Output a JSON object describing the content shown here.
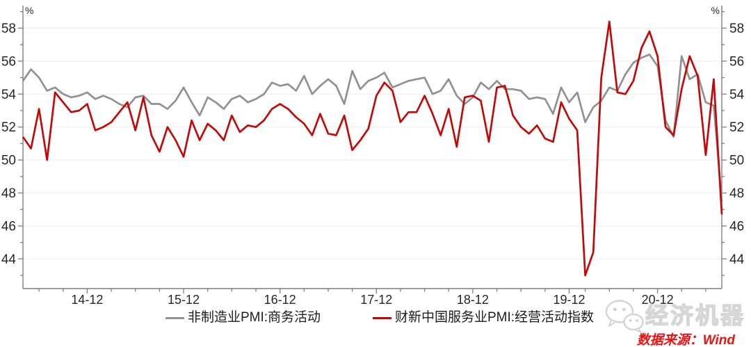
{
  "chart_data": {
    "type": "line",
    "y_axis_unit": "%",
    "ylim": [
      42.2,
      59.2
    ],
    "y_ticks": [
      44,
      46,
      48,
      50,
      52,
      54,
      56,
      58
    ],
    "grid": "horizontal-faint",
    "legend_position": "bottom-center",
    "x_tick_labels": [
      "14-12",
      "15-12",
      "16-12",
      "17-12",
      "18-12",
      "19-12",
      "20-12"
    ],
    "x": [
      "2014-04",
      "2014-05",
      "2014-06",
      "2014-07",
      "2014-08",
      "2014-09",
      "2014-10",
      "2014-11",
      "2014-12",
      "2015-01",
      "2015-02",
      "2015-03",
      "2015-04",
      "2015-05",
      "2015-06",
      "2015-07",
      "2015-08",
      "2015-09",
      "2015-10",
      "2015-11",
      "2015-12",
      "2016-01",
      "2016-02",
      "2016-03",
      "2016-04",
      "2016-05",
      "2016-06",
      "2016-07",
      "2016-08",
      "2016-09",
      "2016-10",
      "2016-11",
      "2016-12",
      "2017-01",
      "2017-02",
      "2017-03",
      "2017-04",
      "2017-05",
      "2017-06",
      "2017-07",
      "2017-08",
      "2017-09",
      "2017-10",
      "2017-11",
      "2017-12",
      "2018-01",
      "2018-02",
      "2018-03",
      "2018-04",
      "2018-05",
      "2018-06",
      "2018-07",
      "2018-08",
      "2018-09",
      "2018-10",
      "2018-11",
      "2018-12",
      "2019-01",
      "2019-02",
      "2019-03",
      "2019-04",
      "2019-05",
      "2019-06",
      "2019-07",
      "2019-08",
      "2019-09",
      "2019-10",
      "2019-11",
      "2019-12",
      "2020-01",
      "2020-03",
      "2020-04",
      "2020-05",
      "2020-06",
      "2020-07",
      "2020-08",
      "2020-09",
      "2020-10",
      "2020-11",
      "2020-12",
      "2021-01",
      "2021-02",
      "2021-03",
      "2021-04",
      "2021-05",
      "2021-06",
      "2021-07",
      "2021-08"
    ],
    "series": [
      {
        "name": "非制造业PMI:商务活动",
        "color": "#919191",
        "values": [
          54.8,
          55.5,
          55.0,
          54.2,
          54.4,
          54.0,
          53.8,
          53.9,
          54.1,
          53.7,
          53.9,
          53.7,
          53.4,
          53.2,
          53.8,
          53.9,
          53.4,
          53.4,
          53.1,
          53.6,
          54.4,
          53.5,
          52.7,
          53.8,
          53.5,
          53.1,
          53.7,
          53.9,
          53.5,
          53.7,
          54.0,
          54.7,
          54.5,
          54.6,
          54.2,
          55.1,
          54.0,
          54.5,
          54.9,
          54.5,
          53.4,
          55.4,
          54.3,
          54.8,
          55.0,
          55.3,
          54.4,
          54.6,
          54.8,
          54.9,
          55.0,
          54.0,
          54.2,
          54.9,
          53.9,
          53.4,
          53.8,
          54.7,
          54.3,
          54.8,
          54.3,
          54.3,
          54.2,
          53.7,
          53.8,
          53.7,
          52.8,
          54.4,
          53.5,
          54.1,
          52.3,
          53.2,
          53.6,
          54.4,
          54.2,
          55.2,
          55.9,
          56.2,
          56.4,
          55.7,
          52.4,
          51.4,
          56.3,
          54.9,
          55.2,
          53.5,
          53.3,
          47.5
        ]
      },
      {
        "name": "财新中国服务业PMI:经营活动指数",
        "color": "#c40808",
        "values": [
          51.4,
          50.7,
          53.1,
          50.0,
          54.1,
          53.5,
          52.9,
          53.0,
          53.4,
          51.8,
          52.0,
          52.3,
          52.9,
          53.5,
          51.8,
          53.8,
          51.5,
          50.5,
          52.0,
          51.2,
          50.2,
          52.4,
          51.2,
          52.2,
          51.8,
          51.2,
          52.7,
          51.7,
          52.1,
          52.0,
          52.4,
          53.1,
          53.4,
          53.1,
          52.6,
          52.2,
          51.5,
          52.8,
          51.6,
          51.5,
          52.7,
          50.6,
          51.2,
          51.9,
          53.9,
          54.7,
          54.2,
          52.3,
          52.9,
          52.9,
          53.9,
          52.8,
          51.5,
          53.1,
          50.8,
          53.8,
          53.9,
          53.6,
          51.1,
          54.4,
          54.5,
          52.7,
          52.0,
          51.6,
          52.1,
          51.3,
          51.1,
          53.5,
          52.5,
          51.8,
          43.0,
          44.4,
          55.0,
          58.4,
          54.1,
          54.0,
          54.8,
          56.8,
          57.8,
          56.3,
          52.0,
          51.5,
          54.3,
          56.3,
          55.1,
          50.3,
          54.9,
          46.7
        ]
      }
    ],
    "style": {
      "axis_color": "#7f7f7f",
      "grid_color": "#efefef",
      "tick_label_color": "#262626"
    }
  },
  "watermark": {
    "brand_text": "经济机器",
    "icon": "wechat-icon"
  },
  "source": {
    "text": "数据来源：Wind"
  }
}
